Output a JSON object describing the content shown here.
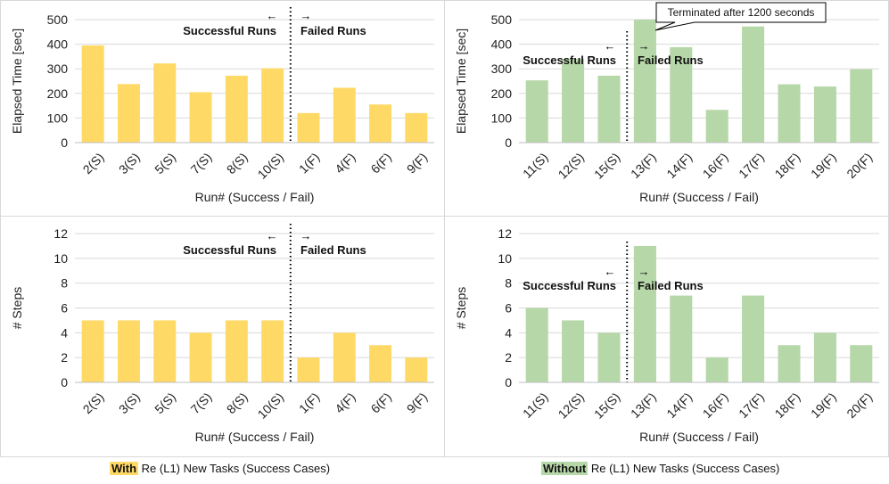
{
  "colors": {
    "with": "#FFD966",
    "without": "#B6D7A8",
    "axis": "#bfbfbf",
    "grid": "#d9d9d9",
    "text": "#222222"
  },
  "chart_data": [
    {
      "id": "tl",
      "type": "bar",
      "color": "with",
      "categories": [
        "2(S)",
        "3(S)",
        "5(S)",
        "7(S)",
        "8(S)",
        "10(S)",
        "1(F)",
        "4(F)",
        "6(F)",
        "9(F)"
      ],
      "values": [
        395,
        238,
        322,
        205,
        272,
        302,
        120,
        223,
        155,
        120
      ],
      "ylabel": "Elapsed Time [sec]",
      "xlabel": "Run# (Success / Fail)",
      "ylim": [
        0,
        500
      ],
      "yticks": [
        0,
        100,
        200,
        300,
        400,
        500
      ],
      "divider_after_index": 5,
      "left_label": "Successful Runs",
      "right_label": "Failed Runs",
      "left_arrow": "←",
      "right_arrow": "→"
    },
    {
      "id": "tr",
      "type": "bar",
      "color": "without",
      "categories": [
        "11(S)",
        "12(S)",
        "15(S)",
        "13(F)",
        "14(F)",
        "16(F)",
        "17(F)",
        "18(F)",
        "19(F)",
        "20(F)"
      ],
      "values": [
        253,
        340,
        272,
        500,
        388,
        133,
        472,
        237,
        228,
        298
      ],
      "ylabel": "Elapsed Time [sec]",
      "xlabel": "Run# (Success / Fail)",
      "ylim": [
        0,
        500
      ],
      "yticks": [
        0,
        100,
        200,
        300,
        400,
        500
      ],
      "divider_after_index": 2,
      "left_label": "Successful Runs",
      "right_label": "Failed Runs",
      "left_arrow": "←",
      "right_arrow": "→",
      "annotation": "Terminated after 1200 seconds"
    },
    {
      "id": "bl",
      "type": "bar",
      "color": "with",
      "categories": [
        "2(S)",
        "3(S)",
        "5(S)",
        "7(S)",
        "8(S)",
        "10(S)",
        "1(F)",
        "4(F)",
        "6(F)",
        "9(F)"
      ],
      "values": [
        5,
        5,
        5,
        4,
        5,
        5,
        2,
        4,
        3,
        2
      ],
      "ylabel": "# Steps",
      "xlabel": "Run# (Success / Fail)",
      "ylim": [
        0,
        12
      ],
      "yticks": [
        0,
        2,
        4,
        6,
        8,
        10,
        12
      ],
      "divider_after_index": 5,
      "left_label": "Successful Runs",
      "right_label": "Failed Runs",
      "left_arrow": "←",
      "right_arrow": "→"
    },
    {
      "id": "br",
      "type": "bar",
      "color": "without",
      "categories": [
        "11(S)",
        "12(S)",
        "15(S)",
        "13(F)",
        "14(F)",
        "16(F)",
        "17(F)",
        "18(F)",
        "19(F)",
        "20(F)"
      ],
      "values": [
        6,
        5,
        4,
        11,
        7,
        2,
        7,
        3,
        4,
        3
      ],
      "ylabel": "# Steps",
      "xlabel": "Run# (Success / Fail)",
      "ylim": [
        0,
        12
      ],
      "yticks": [
        0,
        2,
        4,
        6,
        8,
        10,
        12
      ],
      "divider_after_index": 2,
      "left_label": "Successful Runs",
      "right_label": "Failed Runs",
      "left_arrow": "←",
      "right_arrow": "→"
    }
  ],
  "captions": {
    "left": {
      "highlight": "With",
      "rest": " Re (L1) New Tasks (Success Cases)"
    },
    "right": {
      "highlight": "Without",
      "rest": " Re (L1) New Tasks (Success Cases)"
    }
  }
}
